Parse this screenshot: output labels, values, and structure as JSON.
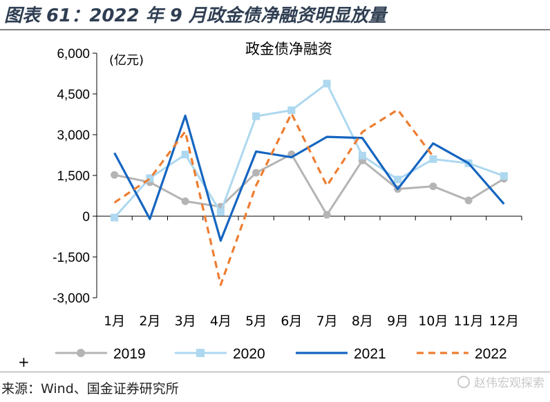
{
  "figure_title": "图表 61：2022 年 9 月政金债净融资明显放量",
  "source": "来源：Wind、国金证券研究所",
  "watermark": "赵伟宏观探索",
  "plus_marker": "+",
  "colors": {
    "2019": "#b4b4b4",
    "2020": "#add8f0",
    "2021": "#1565c0",
    "2022": "#ed7d31"
  },
  "chart_data": {
    "type": "line",
    "title": "政金债净融资",
    "ylabel": "(亿元)",
    "ylim": [
      -3000,
      6000
    ],
    "yticks": [
      6000,
      4500,
      3000,
      1500,
      0,
      -1500,
      -3000
    ],
    "ytick_labels": [
      "6,000",
      "4,500",
      "3,000",
      "1,500",
      "0",
      "-1,500",
      "-3,000"
    ],
    "categories": [
      "1月",
      "2月",
      "3月",
      "4月",
      "5月",
      "6月",
      "7月",
      "8月",
      "9月",
      "10月",
      "11月",
      "12月"
    ],
    "legend_position": "bottom",
    "series": [
      {
        "name": "2019",
        "style": "solid-circle-marker",
        "values": [
          1520,
          1250,
          550,
          350,
          1600,
          2280,
          50,
          2050,
          1000,
          1100,
          580,
          1380
        ]
      },
      {
        "name": "2020",
        "style": "solid-square-marker",
        "values": [
          -50,
          1400,
          2270,
          150,
          3680,
          3900,
          4880,
          2230,
          1350,
          2100,
          1950,
          1480
        ]
      },
      {
        "name": "2021",
        "style": "solid-thick",
        "values": [
          2330,
          -100,
          3700,
          -900,
          2380,
          2170,
          2920,
          2880,
          1000,
          2680,
          1950,
          450
        ]
      },
      {
        "name": "2022",
        "style": "dashed",
        "values": [
          500,
          1380,
          3120,
          -2530,
          1130,
          3780,
          1120,
          3100,
          3920,
          2200,
          null,
          null
        ]
      }
    ]
  }
}
